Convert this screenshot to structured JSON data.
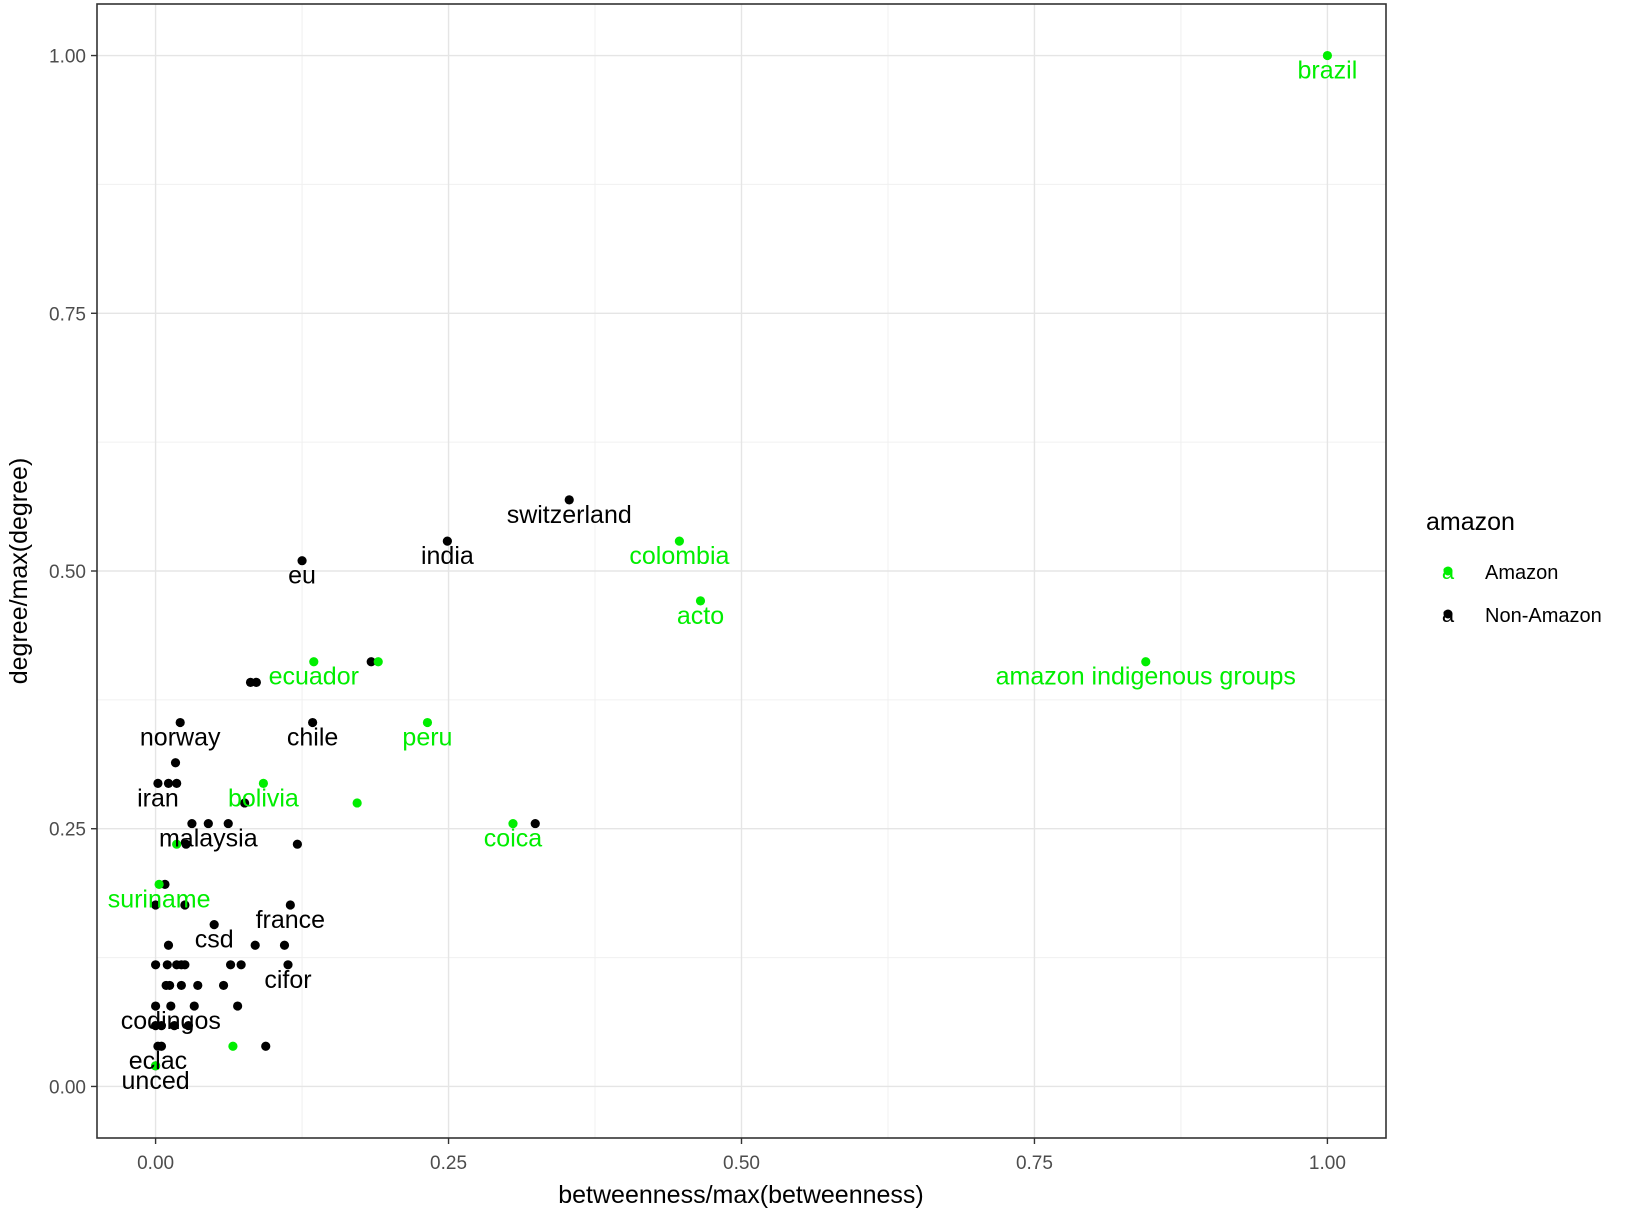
{
  "chart_data": {
    "type": "scatter",
    "xlabel": "betweenness/max(betweenness)",
    "ylabel": "degree/max(degree)",
    "xlim": [
      -0.05,
      1.05
    ],
    "ylim": [
      -0.05,
      1.05
    ],
    "x_ticks": [
      0.0,
      0.25,
      0.5,
      0.75,
      1.0
    ],
    "x_tick_labels": [
      "0.00",
      "0.25",
      "0.50",
      "0.75",
      "1.00"
    ],
    "y_ticks": [
      0.0,
      0.25,
      0.5,
      0.75,
      1.0
    ],
    "y_tick_labels": [
      "0.00",
      "0.25",
      "0.50",
      "0.75",
      "1.00"
    ],
    "grid": true,
    "theme": "bw",
    "legend": {
      "title": "amazon",
      "position": "right",
      "key_glyph": "a",
      "entries": [
        {
          "name": "Amazon",
          "color": "#00ee00"
        },
        {
          "name": "Non-Amazon",
          "color": "#000000"
        }
      ]
    },
    "series": [
      {
        "name": "Amazon",
        "color": "#00ee00",
        "points": [
          {
            "x": 1.0,
            "y": 1.0,
            "label": "brazil"
          },
          {
            "x": 0.447,
            "y": 0.529,
            "label": "colombia"
          },
          {
            "x": 0.465,
            "y": 0.471,
            "label": "acto"
          },
          {
            "x": 0.845,
            "y": 0.412,
            "label": "amazon indigenous groups"
          },
          {
            "x": 0.135,
            "y": 0.412,
            "label": "ecuador"
          },
          {
            "x": 0.19,
            "y": 0.412,
            "label": ""
          },
          {
            "x": 0.232,
            "y": 0.353,
            "label": "peru"
          },
          {
            "x": 0.092,
            "y": 0.294,
            "label": "bolivia"
          },
          {
            "x": 0.172,
            "y": 0.275,
            "label": ""
          },
          {
            "x": 0.305,
            "y": 0.255,
            "label": "coica"
          },
          {
            "x": 0.018,
            "y": 0.235,
            "label": ""
          },
          {
            "x": 0.003,
            "y": 0.196,
            "label": "suriname"
          },
          {
            "x": 0.066,
            "y": 0.039,
            "label": ""
          },
          {
            "x": 0.0,
            "y": 0.02,
            "label": ""
          }
        ]
      },
      {
        "name": "Non-Amazon",
        "color": "#000000",
        "points": [
          {
            "x": 0.353,
            "y": 0.569,
            "label": "switzerland"
          },
          {
            "x": 0.249,
            "y": 0.529,
            "label": "india"
          },
          {
            "x": 0.125,
            "y": 0.51,
            "label": "eu"
          },
          {
            "x": 0.184,
            "y": 0.412,
            "label": ""
          },
          {
            "x": 0.081,
            "y": 0.392,
            "label": ""
          },
          {
            "x": 0.086,
            "y": 0.392,
            "label": ""
          },
          {
            "x": 0.021,
            "y": 0.353,
            "label": "norway"
          },
          {
            "x": 0.134,
            "y": 0.353,
            "label": "chile"
          },
          {
            "x": 0.017,
            "y": 0.314,
            "label": ""
          },
          {
            "x": 0.002,
            "y": 0.294,
            "label": "iran"
          },
          {
            "x": 0.011,
            "y": 0.294,
            "label": ""
          },
          {
            "x": 0.018,
            "y": 0.294,
            "label": ""
          },
          {
            "x": 0.076,
            "y": 0.275,
            "label": ""
          },
          {
            "x": 0.031,
            "y": 0.255,
            "label": ""
          },
          {
            "x": 0.045,
            "y": 0.255,
            "label": "malaysia"
          },
          {
            "x": 0.062,
            "y": 0.255,
            "label": ""
          },
          {
            "x": 0.324,
            "y": 0.255,
            "label": ""
          },
          {
            "x": 0.026,
            "y": 0.235,
            "label": ""
          },
          {
            "x": 0.121,
            "y": 0.235,
            "label": ""
          },
          {
            "x": 0.008,
            "y": 0.196,
            "label": ""
          },
          {
            "x": 0.0,
            "y": 0.176,
            "label": ""
          },
          {
            "x": 0.025,
            "y": 0.176,
            "label": ""
          },
          {
            "x": 0.115,
            "y": 0.176,
            "label": "france"
          },
          {
            "x": 0.05,
            "y": 0.157,
            "label": "csd"
          },
          {
            "x": 0.011,
            "y": 0.137,
            "label": ""
          },
          {
            "x": 0.085,
            "y": 0.137,
            "label": ""
          },
          {
            "x": 0.11,
            "y": 0.137,
            "label": ""
          },
          {
            "x": 0.0,
            "y": 0.118,
            "label": ""
          },
          {
            "x": 0.01,
            "y": 0.118,
            "label": ""
          },
          {
            "x": 0.018,
            "y": 0.118,
            "label": ""
          },
          {
            "x": 0.022,
            "y": 0.118,
            "label": ""
          },
          {
            "x": 0.025,
            "y": 0.118,
            "label": ""
          },
          {
            "x": 0.064,
            "y": 0.118,
            "label": ""
          },
          {
            "x": 0.073,
            "y": 0.118,
            "label": ""
          },
          {
            "x": 0.113,
            "y": 0.118,
            "label": "cifor"
          },
          {
            "x": 0.009,
            "y": 0.098,
            "label": ""
          },
          {
            "x": 0.012,
            "y": 0.098,
            "label": ""
          },
          {
            "x": 0.022,
            "y": 0.098,
            "label": ""
          },
          {
            "x": 0.036,
            "y": 0.098,
            "label": ""
          },
          {
            "x": 0.058,
            "y": 0.098,
            "label": ""
          },
          {
            "x": 0.0,
            "y": 0.078,
            "label": ""
          },
          {
            "x": 0.013,
            "y": 0.078,
            "label": "codingos"
          },
          {
            "x": 0.033,
            "y": 0.078,
            "label": ""
          },
          {
            "x": 0.07,
            "y": 0.078,
            "label": ""
          },
          {
            "x": 0.0,
            "y": 0.059,
            "label": ""
          },
          {
            "x": 0.005,
            "y": 0.059,
            "label": ""
          },
          {
            "x": 0.016,
            "y": 0.059,
            "label": ""
          },
          {
            "x": 0.028,
            "y": 0.059,
            "label": ""
          },
          {
            "x": 0.002,
            "y": 0.039,
            "label": "eclac"
          },
          {
            "x": 0.005,
            "y": 0.039,
            "label": ""
          },
          {
            "x": 0.094,
            "y": 0.039,
            "label": ""
          },
          {
            "x": 0.0,
            "y": 0.02,
            "label": "unced"
          }
        ]
      }
    ]
  }
}
